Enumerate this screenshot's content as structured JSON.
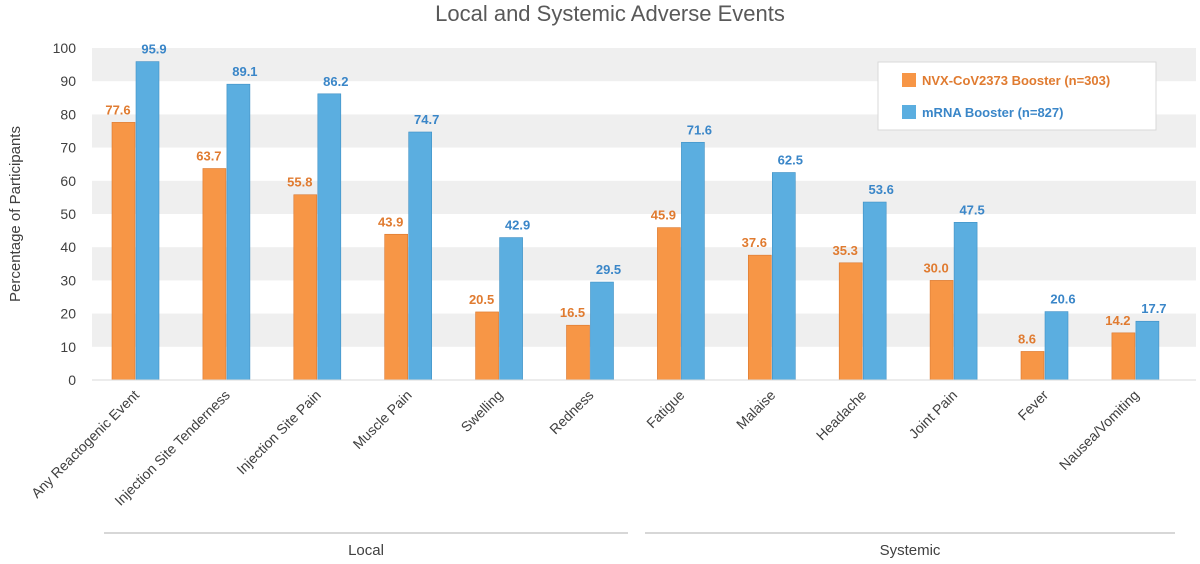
{
  "chart_data": {
    "type": "bar",
    "title": "Local and Systemic Adverse Events",
    "ylabel": "Percentage of Participants",
    "xlabel": "",
    "ylim": [
      0,
      100
    ],
    "yticks": [
      0,
      10,
      20,
      30,
      40,
      50,
      60,
      70,
      80,
      90,
      100
    ],
    "grid": "alternating horizontal bands",
    "legend_position": "top-right",
    "categories": [
      "Any Reactogenic Event",
      "Injection Site Tenderness",
      "Injection Site Pain",
      "Muscle Pain",
      "Swelling",
      "Redness",
      "Fatigue",
      "Malaise",
      "Headache",
      "Joint Pain",
      "Fever",
      "Nausea/Vomiting"
    ],
    "groups": [
      {
        "name": "Local",
        "categories": [
          "Any Reactogenic Event",
          "Injection Site Tenderness",
          "Injection Site Pain",
          "Muscle Pain",
          "Swelling",
          "Redness"
        ]
      },
      {
        "name": "Systemic",
        "categories": [
          "Fatigue",
          "Malaise",
          "Headache",
          "Joint Pain",
          "Fever",
          "Nausea/Vomiting"
        ]
      }
    ],
    "series": [
      {
        "name": "NVX-CoV2373 Booster (n=303)",
        "color": "#F79646",
        "values": [
          77.6,
          63.7,
          55.8,
          43.9,
          20.5,
          16.5,
          45.9,
          37.6,
          35.3,
          30.0,
          8.6,
          14.2
        ],
        "labels": [
          "77.6",
          "63.7",
          "55.8",
          "43.9",
          "20.5",
          "16.5",
          "45.9",
          "37.6",
          "35.3",
          "30.0",
          "8.6",
          "14.2"
        ]
      },
      {
        "name": "mRNA Booster (n=827)",
        "color": "#5BAEE0",
        "values": [
          95.9,
          89.1,
          86.2,
          74.7,
          42.9,
          29.5,
          71.6,
          62.5,
          53.6,
          47.5,
          20.6,
          17.7
        ],
        "labels": [
          "95.9",
          "89.1",
          "86.2",
          "74.7",
          "42.9",
          "29.5",
          "71.6",
          "62.5",
          "53.6",
          "47.5",
          "20.6",
          "17.7"
        ]
      }
    ],
    "label_colors": {
      "series_0": "#E07B30",
      "series_1": "#3A86C8"
    }
  }
}
